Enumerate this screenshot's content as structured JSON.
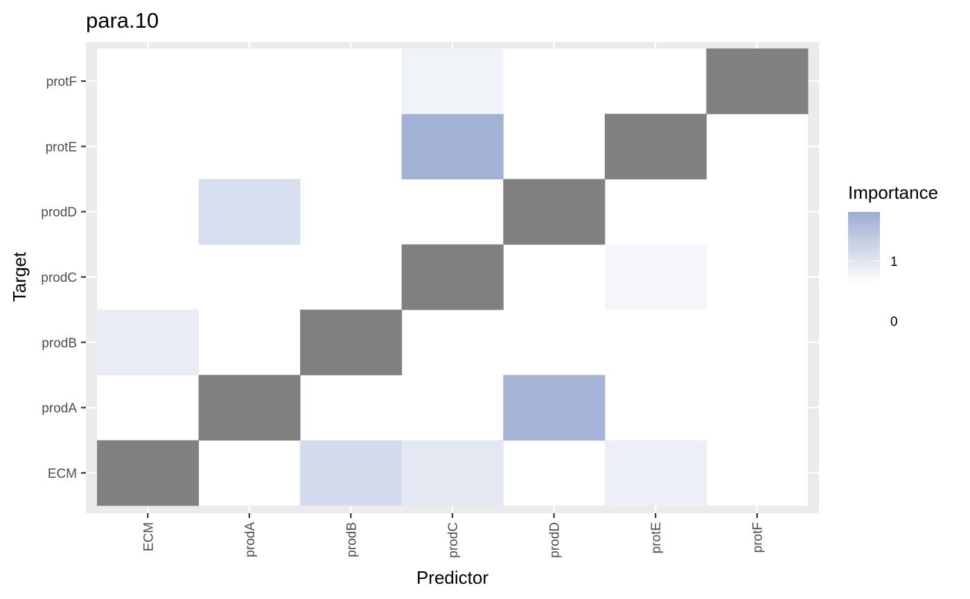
{
  "chart_data": {
    "type": "heatmap",
    "title": "para.10",
    "xlabel": "Predictor",
    "ylabel": "Target",
    "x_categories": [
      "ECM",
      "prodA",
      "prodB",
      "prodC",
      "prodD",
      "protE",
      "protF"
    ],
    "y_categories": [
      "ECM",
      "prodA",
      "prodB",
      "prodC",
      "prodD",
      "protE",
      "protF"
    ],
    "diagonal_color": "#808080",
    "cells": [
      {
        "x": "ECM",
        "y": "ECM",
        "value": null
      },
      {
        "x": "prodA",
        "y": "prodA",
        "value": null
      },
      {
        "x": "prodB",
        "y": "prodB",
        "value": null
      },
      {
        "x": "prodC",
        "y": "prodC",
        "value": null
      },
      {
        "x": "prodD",
        "y": "prodD",
        "value": null
      },
      {
        "x": "protE",
        "y": "protE",
        "value": null
      },
      {
        "x": "protF",
        "y": "protF",
        "value": null
      },
      {
        "x": "prodB",
        "y": "ECM",
        "value": 1.15
      },
      {
        "x": "prodC",
        "y": "ECM",
        "value": 0.95
      },
      {
        "x": "protE",
        "y": "ECM",
        "value": 0.85
      },
      {
        "x": "prodD",
        "y": "prodA",
        "value": 1.7
      },
      {
        "x": "ECM",
        "y": "prodB",
        "value": 0.9
      },
      {
        "x": "protE",
        "y": "prodC",
        "value": 0.75
      },
      {
        "x": "prodA",
        "y": "prodD",
        "value": 1.1
      },
      {
        "x": "prodC",
        "y": "protE",
        "value": 1.75
      },
      {
        "x": "prodC",
        "y": "protF",
        "value": 0.8
      }
    ],
    "legend": {
      "title": "Importance",
      "ticks": [
        1,
        0
      ],
      "low_color": "#ffffff",
      "high_color": "#9cadd3",
      "value_min": 0.62,
      "value_max": 1.82
    },
    "grid": true
  }
}
